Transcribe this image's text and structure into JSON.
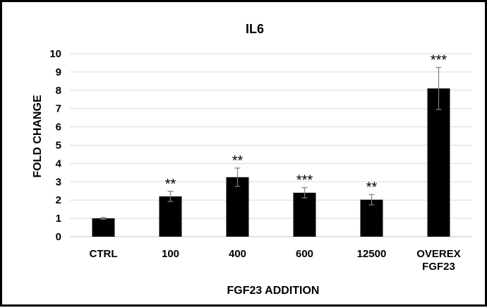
{
  "chart_data": {
    "type": "bar",
    "title": "IL6",
    "xlabel": "FGF23 ADDITION",
    "ylabel": "FOLD CHANGE",
    "ylim": [
      0,
      10
    ],
    "yticks": [
      0,
      1,
      2,
      3,
      4,
      5,
      6,
      7,
      8,
      9,
      10
    ],
    "grid": true,
    "categories": [
      {
        "lines": [
          "CTRL"
        ]
      },
      {
        "lines": [
          "100"
        ]
      },
      {
        "lines": [
          "400"
        ]
      },
      {
        "lines": [
          "600"
        ]
      },
      {
        "lines": [
          "12500"
        ]
      },
      {
        "lines": [
          "OVEREX",
          "FGF23"
        ]
      }
    ],
    "values": [
      1.0,
      2.2,
      3.25,
      2.4,
      2.02,
      8.1
    ],
    "errors": [
      0.05,
      0.28,
      0.5,
      0.28,
      0.28,
      1.15
    ],
    "significance": [
      "",
      "**",
      "**",
      "***",
      "**",
      "***"
    ],
    "colors": {
      "bar": "#000000",
      "grid": "#d9d9d9",
      "axis": "#bfbfbf"
    }
  }
}
